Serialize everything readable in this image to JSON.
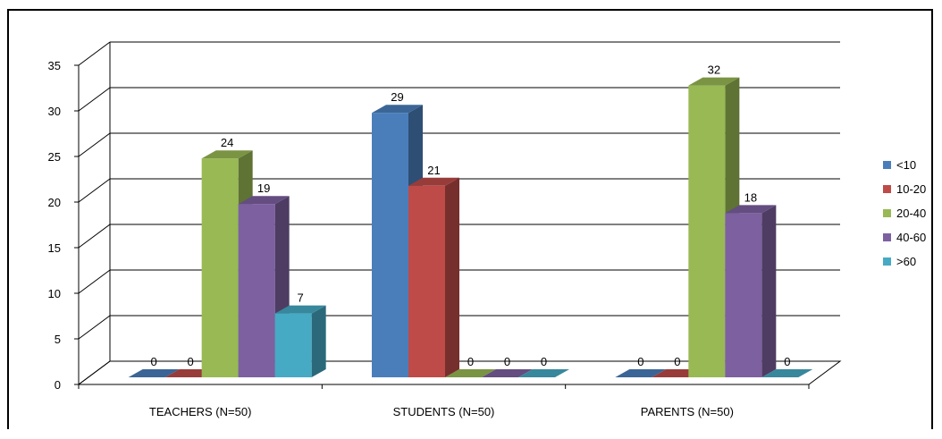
{
  "chart_data": {
    "type": "bar",
    "style": "3d-clustered-column",
    "categories": [
      "TEACHERS (N=50)",
      "STUDENTS (N=50)",
      "PARENTS (N=50)"
    ],
    "series": [
      {
        "name": "<10",
        "color": "#4a7ebb",
        "values": [
          0,
          29,
          0
        ]
      },
      {
        "name": "10-20",
        "color": "#be4b48",
        "values": [
          0,
          21,
          0
        ]
      },
      {
        "name": "20-40",
        "color": "#98b954",
        "values": [
          24,
          0,
          32
        ]
      },
      {
        "name": "40-60",
        "color": "#7d60a0",
        "values": [
          19,
          0,
          18
        ]
      },
      {
        "name": ">60",
        "color": "#46aac4",
        "values": [
          7,
          0,
          0
        ]
      }
    ],
    "ylim": [
      0,
      35
    ],
    "yticks": [
      0,
      5,
      10,
      15,
      20,
      25,
      30,
      35
    ],
    "grid": true,
    "legend": "right",
    "title": "",
    "xlabel": "",
    "ylabel": ""
  }
}
